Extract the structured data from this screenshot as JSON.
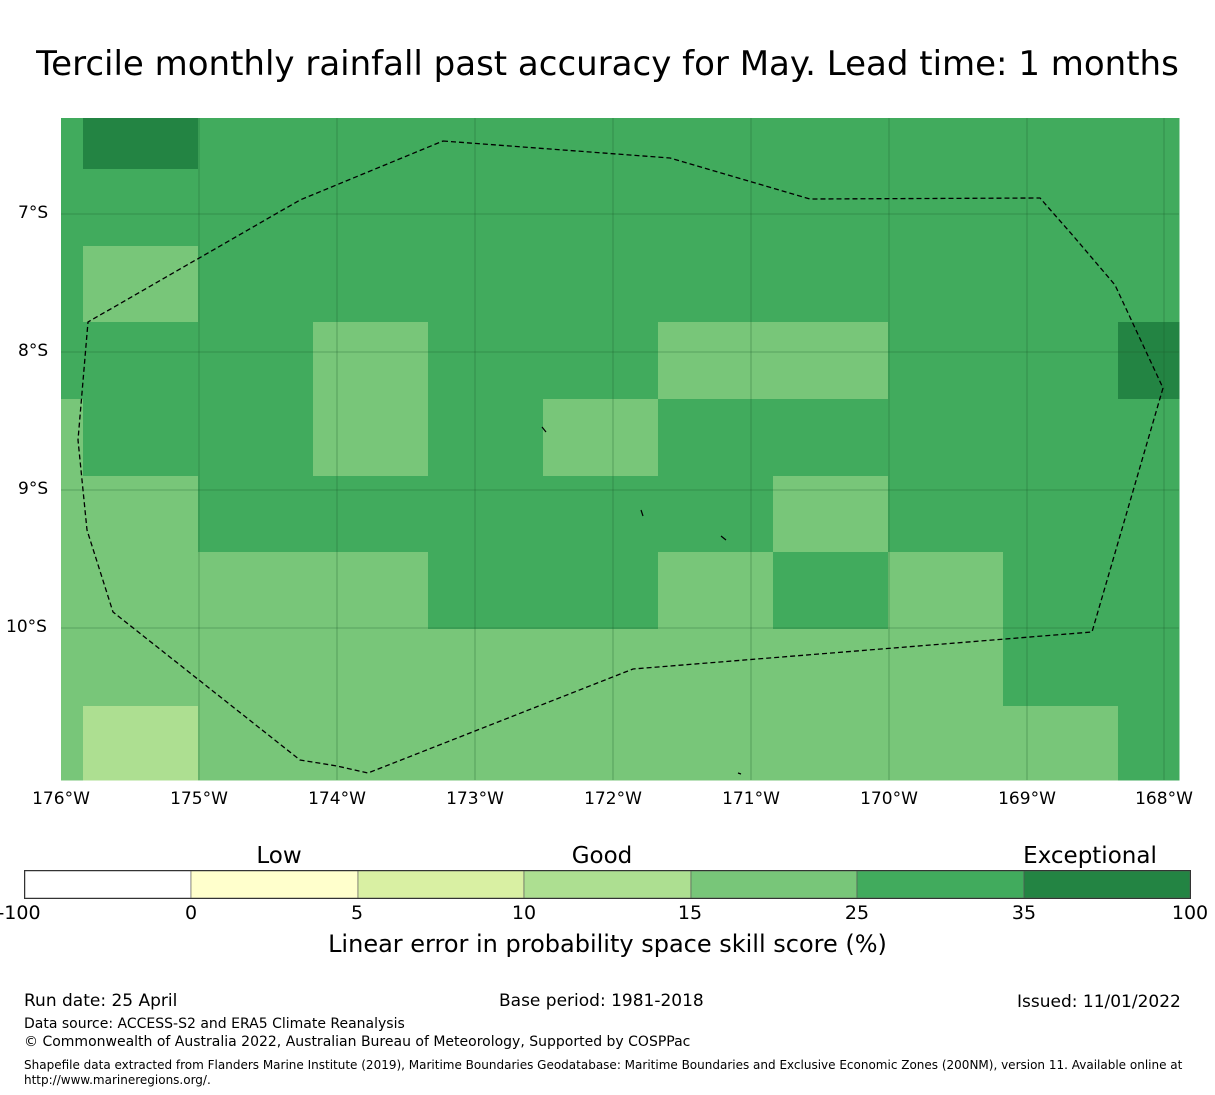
{
  "title": "Tercile monthly rainfall past accuracy for May. Lead time: 1 months",
  "map": {
    "lat_labels": [
      "7°S",
      "8°S",
      "9°S",
      "10°S"
    ],
    "lon_labels": [
      "176°W",
      "175°W",
      "174°W",
      "173°W",
      "172°W",
      "171°W",
      "170°W",
      "169°W",
      "168°W"
    ],
    "grid_colors": {
      "c10_15": "#addf91",
      "c15_25": "#78c679",
      "c25_35": "#41ab5d",
      "c35_100": "#238443",
      "boundary": "#000000"
    }
  },
  "colorbar": {
    "categories": [
      "Low",
      "Good",
      "Exceptional"
    ],
    "ticks": [
      "-100",
      "0",
      "5",
      "10",
      "15",
      "25",
      "35",
      "100"
    ],
    "colors": [
      "#ffffff",
      "#ffffcc",
      "#d9f0a3",
      "#addf91",
      "#78c679",
      "#41ab5d",
      "#238443"
    ],
    "label": "Linear error in probability space skill score (%)"
  },
  "footer": {
    "run_date": "Run date: 25 April",
    "base_period": "Base period: 1981-2018",
    "issued": "Issued: 11/01/2022",
    "data_source": "Data source: ACCESS-S2 and ERA5 Climate Reanalysis",
    "copyright": "© Commonwealth of Australia 2022, Australian Bureau of Meteorology, Supported by COSPPac",
    "shapefile": "Shapefile data extracted from Flanders Marine Institute (2019), Maritime Boundaries Geodatabase: Maritime Boundaries and Exclusive Economic Zones (200NM), version 11. Available online at http://www.marineregions.org/."
  }
}
